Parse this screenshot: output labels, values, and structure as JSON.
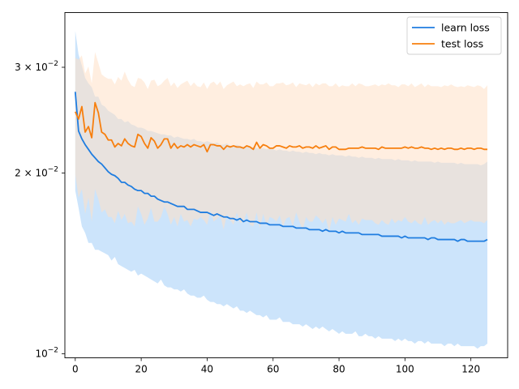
{
  "chart_data": {
    "type": "line",
    "title": "",
    "xlabel": "",
    "ylabel": "",
    "xlim": [
      -3.15,
      131.15
    ],
    "ylim": [
      0.00985,
      0.037
    ],
    "yscale": "log",
    "x_ticks": [
      0,
      20,
      40,
      60,
      80,
      100,
      120
    ],
    "y_ticks": [
      {
        "value": 0.01,
        "base": "10",
        "exp": "−2",
        "mult": ""
      },
      {
        "value": 0.02,
        "base": "10",
        "exp": "−2",
        "mult": "2 × "
      },
      {
        "value": 0.03,
        "base": "10",
        "exp": "−2",
        "mult": "3 × "
      }
    ],
    "grid": false,
    "legend_position": "top-right",
    "legend": [
      "learn loss",
      "test loss"
    ],
    "x": [
      0,
      1,
      2,
      3,
      4,
      5,
      6,
      7,
      8,
      9,
      10,
      11,
      12,
      13,
      14,
      15,
      16,
      17,
      18,
      19,
      20,
      21,
      22,
      23,
      24,
      25,
      26,
      27,
      28,
      29,
      30,
      31,
      32,
      33,
      34,
      35,
      36,
      37,
      38,
      39,
      40,
      41,
      42,
      43,
      44,
      45,
      46,
      47,
      48,
      49,
      50,
      51,
      52,
      53,
      54,
      55,
      56,
      57,
      58,
      59,
      60,
      61,
      62,
      63,
      64,
      65,
      66,
      67,
      68,
      69,
      70,
      71,
      72,
      73,
      74,
      75,
      76,
      77,
      78,
      79,
      80,
      81,
      82,
      83,
      84,
      85,
      86,
      87,
      88,
      89,
      90,
      91,
      92,
      93,
      94,
      95,
      96,
      97,
      98,
      99,
      100,
      101,
      102,
      103,
      104,
      105,
      106,
      107,
      108,
      109,
      110,
      111,
      112,
      113,
      114,
      115,
      116,
      117,
      118,
      119,
      120,
      121,
      122,
      123,
      124,
      125
    ],
    "series": [
      {
        "name": "learn loss",
        "color": "#1f7de0",
        "band_color": "#cce4fb",
        "values": [
          0.0273,
          0.0235,
          0.0228,
          0.0223,
          0.0219,
          0.0215,
          0.0212,
          0.0209,
          0.0207,
          0.0204,
          0.0201,
          0.0199,
          0.0198,
          0.0196,
          0.0193,
          0.0193,
          0.0191,
          0.019,
          0.0188,
          0.0187,
          0.0187,
          0.0185,
          0.0185,
          0.0183,
          0.0183,
          0.0181,
          0.018,
          0.0179,
          0.0179,
          0.0178,
          0.0177,
          0.0176,
          0.0176,
          0.0176,
          0.0174,
          0.0174,
          0.0174,
          0.0173,
          0.0172,
          0.0172,
          0.0172,
          0.0171,
          0.017,
          0.0171,
          0.017,
          0.0169,
          0.0169,
          0.0168,
          0.0168,
          0.0167,
          0.0168,
          0.0166,
          0.0167,
          0.0166,
          0.0166,
          0.0166,
          0.0165,
          0.0165,
          0.0165,
          0.0164,
          0.0164,
          0.0164,
          0.0164,
          0.0163,
          0.0163,
          0.0163,
          0.0163,
          0.0162,
          0.0162,
          0.0162,
          0.0162,
          0.0161,
          0.0161,
          0.0161,
          0.0161,
          0.016,
          0.0161,
          0.016,
          0.016,
          0.016,
          0.0159,
          0.016,
          0.0159,
          0.0159,
          0.0159,
          0.0159,
          0.0159,
          0.0158,
          0.0158,
          0.0158,
          0.0158,
          0.0158,
          0.0158,
          0.0157,
          0.0157,
          0.0157,
          0.0157,
          0.0157,
          0.0157,
          0.0156,
          0.0157,
          0.0156,
          0.0156,
          0.0156,
          0.0156,
          0.0156,
          0.0156,
          0.0155,
          0.0156,
          0.0156,
          0.0155,
          0.0155,
          0.0155,
          0.0155,
          0.0155,
          0.0155,
          0.0154,
          0.0155,
          0.0155,
          0.0154,
          0.0154,
          0.0154,
          0.0154,
          0.0154,
          0.0154,
          0.0155
        ],
        "lower": [
          0.0187,
          0.0175,
          0.0163,
          0.0159,
          0.0153,
          0.0153,
          0.0149,
          0.0149,
          0.0148,
          0.0147,
          0.0146,
          0.0143,
          0.0145,
          0.0141,
          0.014,
          0.0139,
          0.0138,
          0.0137,
          0.0138,
          0.0135,
          0.0136,
          0.0135,
          0.0134,
          0.0133,
          0.0132,
          0.0131,
          0.0133,
          0.013,
          0.0129,
          0.0129,
          0.0128,
          0.0128,
          0.0127,
          0.0128,
          0.0126,
          0.0125,
          0.0125,
          0.0124,
          0.0124,
          0.0125,
          0.0123,
          0.0122,
          0.0122,
          0.0121,
          0.0121,
          0.012,
          0.0121,
          0.012,
          0.0119,
          0.012,
          0.0118,
          0.0118,
          0.0117,
          0.0118,
          0.0117,
          0.0116,
          0.0116,
          0.0115,
          0.0116,
          0.0114,
          0.0114,
          0.0114,
          0.0115,
          0.0113,
          0.0113,
          0.0113,
          0.0112,
          0.0112,
          0.0112,
          0.0111,
          0.0112,
          0.0111,
          0.011,
          0.0111,
          0.011,
          0.0111,
          0.011,
          0.0109,
          0.011,
          0.0109,
          0.0108,
          0.0109,
          0.0108,
          0.0108,
          0.0108,
          0.0109,
          0.0107,
          0.0107,
          0.0108,
          0.0107,
          0.0107,
          0.0106,
          0.0107,
          0.0106,
          0.0106,
          0.0106,
          0.0106,
          0.0105,
          0.0106,
          0.0105,
          0.0106,
          0.0105,
          0.0105,
          0.0104,
          0.0105,
          0.0105,
          0.0104,
          0.0105,
          0.0104,
          0.0104,
          0.0104,
          0.0104,
          0.0103,
          0.0104,
          0.0104,
          0.0103,
          0.0104,
          0.0103,
          0.0103,
          0.0103,
          0.0103,
          0.0103,
          0.0102,
          0.0103,
          0.0103,
          0.0104
        ],
        "upper": [
          0.0345,
          0.0315,
          0.0302,
          0.0288,
          0.0282,
          0.0278,
          0.0268,
          0.0268,
          0.026,
          0.0258,
          0.0254,
          0.0252,
          0.025,
          0.0246,
          0.0246,
          0.0243,
          0.0244,
          0.0241,
          0.024,
          0.0238,
          0.0238,
          0.0237,
          0.0235,
          0.0235,
          0.0234,
          0.0233,
          0.0232,
          0.0232,
          0.0231,
          0.0231,
          0.0229,
          0.023,
          0.0229,
          0.0228,
          0.0228,
          0.0227,
          0.0228,
          0.0226,
          0.0226,
          0.0225,
          0.0226,
          0.0225,
          0.0224,
          0.0225,
          0.0223,
          0.0223,
          0.0224,
          0.0222,
          0.0222,
          0.0223,
          0.0222,
          0.0221,
          0.0222,
          0.022,
          0.0221,
          0.022,
          0.022,
          0.022,
          0.0219,
          0.022,
          0.0219,
          0.0218,
          0.0219,
          0.0218,
          0.0218,
          0.0217,
          0.0218,
          0.0217,
          0.0217,
          0.0216,
          0.0217,
          0.0216,
          0.0216,
          0.0215,
          0.0216,
          0.0215,
          0.0215,
          0.0214,
          0.0215,
          0.0214,
          0.0214,
          0.0214,
          0.0213,
          0.0214,
          0.0213,
          0.0213,
          0.0212,
          0.0213,
          0.0212,
          0.0212,
          0.0212,
          0.0211,
          0.0212,
          0.0211,
          0.0211,
          0.0211,
          0.0211,
          0.021,
          0.0211,
          0.021,
          0.021,
          0.021,
          0.0209,
          0.021,
          0.0209,
          0.0209,
          0.0209,
          0.0209,
          0.0209,
          0.0208,
          0.0209,
          0.0208,
          0.0208,
          0.0208,
          0.0208,
          0.0208,
          0.0207,
          0.0208,
          0.0207,
          0.0207,
          0.0207,
          0.0207,
          0.0207,
          0.0206,
          0.0207,
          0.0209
        ]
      },
      {
        "name": "test loss",
        "color": "#f77f0e",
        "band_color": "#ffe0c6",
        "values": [
          0.0253,
          0.0246,
          0.0258,
          0.0234,
          0.0239,
          0.0229,
          0.0262,
          0.0252,
          0.0234,
          0.0232,
          0.0227,
          0.0227,
          0.0221,
          0.0224,
          0.0222,
          0.0228,
          0.0224,
          0.0222,
          0.0221,
          0.0232,
          0.023,
          0.0224,
          0.022,
          0.0229,
          0.0226,
          0.022,
          0.0223,
          0.0228,
          0.0228,
          0.022,
          0.0224,
          0.022,
          0.0222,
          0.0221,
          0.0223,
          0.0221,
          0.0223,
          0.0222,
          0.0221,
          0.0223,
          0.0217,
          0.0223,
          0.0223,
          0.0222,
          0.0222,
          0.0219,
          0.0222,
          0.0221,
          0.0222,
          0.0221,
          0.0221,
          0.022,
          0.0222,
          0.0221,
          0.0219,
          0.0225,
          0.022,
          0.0223,
          0.0222,
          0.022,
          0.022,
          0.0222,
          0.0222,
          0.0221,
          0.022,
          0.0222,
          0.0221,
          0.0221,
          0.0222,
          0.022,
          0.0221,
          0.0221,
          0.022,
          0.0222,
          0.022,
          0.0221,
          0.0222,
          0.0219,
          0.0221,
          0.0221,
          0.0219,
          0.0219,
          0.0219,
          0.022,
          0.022,
          0.022,
          0.022,
          0.0221,
          0.022,
          0.022,
          0.022,
          0.022,
          0.0219,
          0.0221,
          0.022,
          0.022,
          0.022,
          0.022,
          0.022,
          0.022,
          0.0221,
          0.022,
          0.0221,
          0.022,
          0.022,
          0.0221,
          0.022,
          0.022,
          0.0219,
          0.022,
          0.0219,
          0.022,
          0.0219,
          0.022,
          0.022,
          0.0219,
          0.0219,
          0.022,
          0.0219,
          0.022,
          0.022,
          0.0219,
          0.022,
          0.022,
          0.0219,
          0.0219
        ],
        "lower": [
          0.0199,
          0.0182,
          0.0188,
          0.0171,
          0.0182,
          0.0166,
          0.0188,
          0.0181,
          0.0172,
          0.0174,
          0.0169,
          0.0169,
          0.0165,
          0.0173,
          0.0167,
          0.0171,
          0.0165,
          0.0166,
          0.0163,
          0.0176,
          0.0171,
          0.0164,
          0.0168,
          0.0175,
          0.0166,
          0.0166,
          0.0169,
          0.0176,
          0.0171,
          0.0164,
          0.0169,
          0.0163,
          0.0171,
          0.0166,
          0.0167,
          0.0163,
          0.0168,
          0.0167,
          0.0169,
          0.0167,
          0.0164,
          0.0173,
          0.0166,
          0.0168,
          0.017,
          0.0161,
          0.0171,
          0.0167,
          0.0164,
          0.0172,
          0.0165,
          0.0166,
          0.0172,
          0.0164,
          0.0163,
          0.0172,
          0.0162,
          0.0171,
          0.0164,
          0.0169,
          0.0168,
          0.0166,
          0.017,
          0.0163,
          0.0168,
          0.0169,
          0.0163,
          0.0172,
          0.0166,
          0.0161,
          0.0169,
          0.0166,
          0.0166,
          0.017,
          0.0168,
          0.0165,
          0.0168,
          0.016,
          0.0169,
          0.0164,
          0.0168,
          0.0167,
          0.0166,
          0.0171,
          0.0165,
          0.0167,
          0.0164,
          0.0168,
          0.0167,
          0.0167,
          0.0167,
          0.0165,
          0.0164,
          0.0167,
          0.0165,
          0.0164,
          0.0168,
          0.0165,
          0.0167,
          0.0166,
          0.0169,
          0.0166,
          0.0165,
          0.0167,
          0.0165,
          0.0164,
          0.0169,
          0.0164,
          0.0166,
          0.0167,
          0.0165,
          0.0167,
          0.0164,
          0.0166,
          0.0165,
          0.0165,
          0.0166,
          0.0167,
          0.0165,
          0.0166,
          0.0167,
          0.0166,
          0.0166,
          0.0166,
          0.0165,
          0.0167
        ],
        "upper": [
          0.0311,
          0.0309,
          0.0314,
          0.0293,
          0.0301,
          0.0282,
          0.0318,
          0.0305,
          0.0292,
          0.0289,
          0.0287,
          0.0287,
          0.0281,
          0.0289,
          0.0285,
          0.0295,
          0.0286,
          0.028,
          0.0278,
          0.0288,
          0.0287,
          0.0283,
          0.0276,
          0.0285,
          0.0286,
          0.0279,
          0.0281,
          0.0285,
          0.0288,
          0.0279,
          0.0283,
          0.0277,
          0.0281,
          0.0283,
          0.0285,
          0.0279,
          0.0283,
          0.0279,
          0.0278,
          0.0283,
          0.0276,
          0.0282,
          0.0284,
          0.028,
          0.0284,
          0.0276,
          0.028,
          0.0282,
          0.0284,
          0.0279,
          0.0281,
          0.0279,
          0.0281,
          0.0282,
          0.0277,
          0.0284,
          0.0281,
          0.0281,
          0.0283,
          0.0279,
          0.0279,
          0.0282,
          0.0282,
          0.0283,
          0.028,
          0.0281,
          0.0283,
          0.0278,
          0.0282,
          0.0281,
          0.028,
          0.0282,
          0.0278,
          0.0282,
          0.028,
          0.0282,
          0.0282,
          0.0279,
          0.0279,
          0.0282,
          0.0278,
          0.028,
          0.0279,
          0.0279,
          0.0282,
          0.0279,
          0.0282,
          0.0281,
          0.0279,
          0.0279,
          0.028,
          0.0281,
          0.0279,
          0.0281,
          0.028,
          0.0282,
          0.028,
          0.028,
          0.0278,
          0.0281,
          0.0281,
          0.0279,
          0.0282,
          0.0278,
          0.028,
          0.0282,
          0.0278,
          0.0281,
          0.0279,
          0.0279,
          0.0279,
          0.0278,
          0.028,
          0.0279,
          0.0281,
          0.0279,
          0.0278,
          0.0279,
          0.0278,
          0.028,
          0.0279,
          0.0278,
          0.028,
          0.0279,
          0.0276,
          0.028
        ]
      }
    ]
  }
}
